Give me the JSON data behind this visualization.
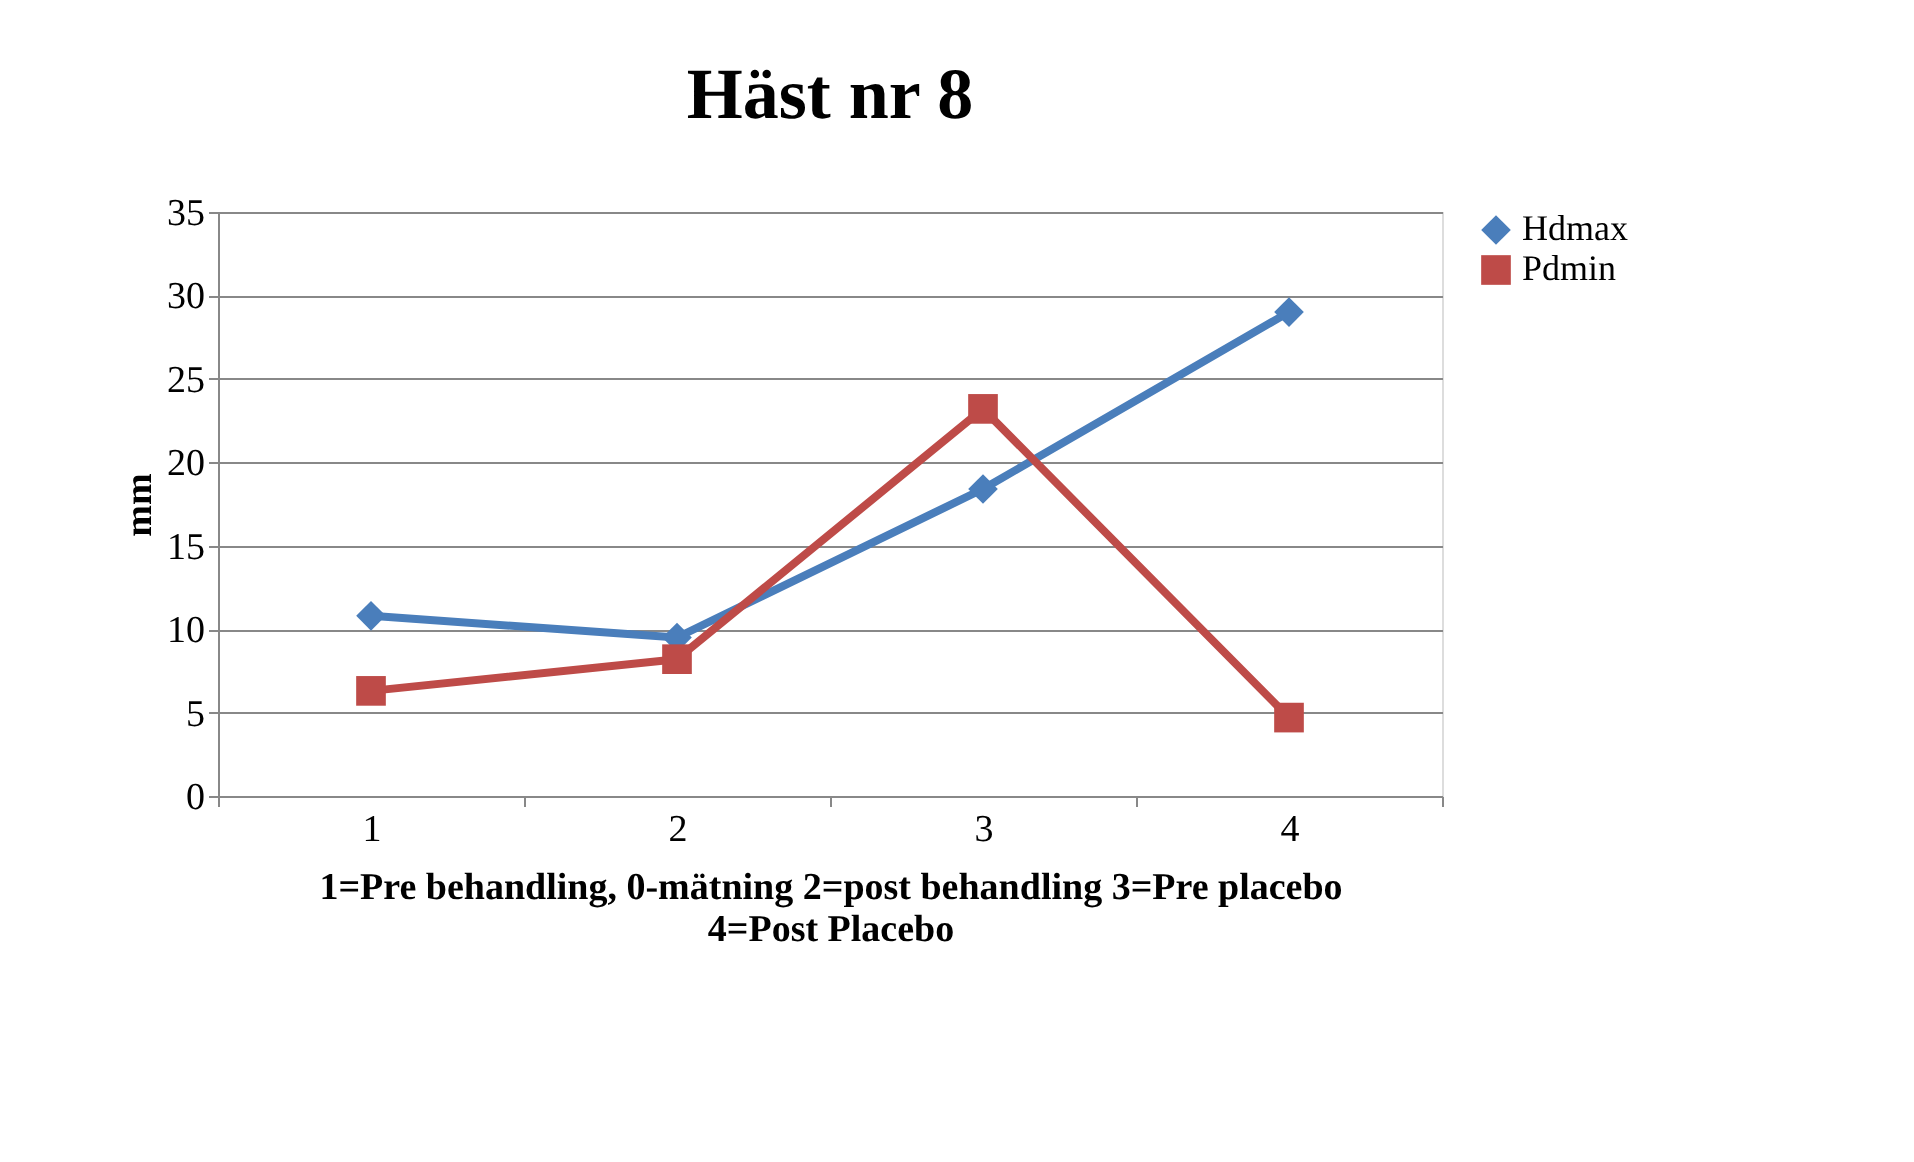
{
  "chart_data": {
    "type": "line",
    "title": "Häst nr 8",
    "xlabel": "1=Pre behandling, 0-mätning 2=post behandling 3=Pre placebo 4=Post Placebo",
    "ylabel": "mm",
    "categories": [
      "1",
      "2",
      "3",
      "4"
    ],
    "series": [
      {
        "name": "Hdmax",
        "color": "#4a7ebb",
        "marker": "diamond",
        "values": [
          10.8,
          9.5,
          18.4,
          29.0
        ]
      },
      {
        "name": "Pdmin",
        "color": "#be4b48",
        "marker": "square",
        "values": [
          6.3,
          8.2,
          23.2,
          4.7
        ]
      }
    ],
    "ylim": [
      0,
      35
    ],
    "yticks": [
      0,
      5,
      10,
      15,
      20,
      25,
      30,
      35
    ],
    "grid": "y",
    "legend": "right",
    "line_style": "solid"
  }
}
